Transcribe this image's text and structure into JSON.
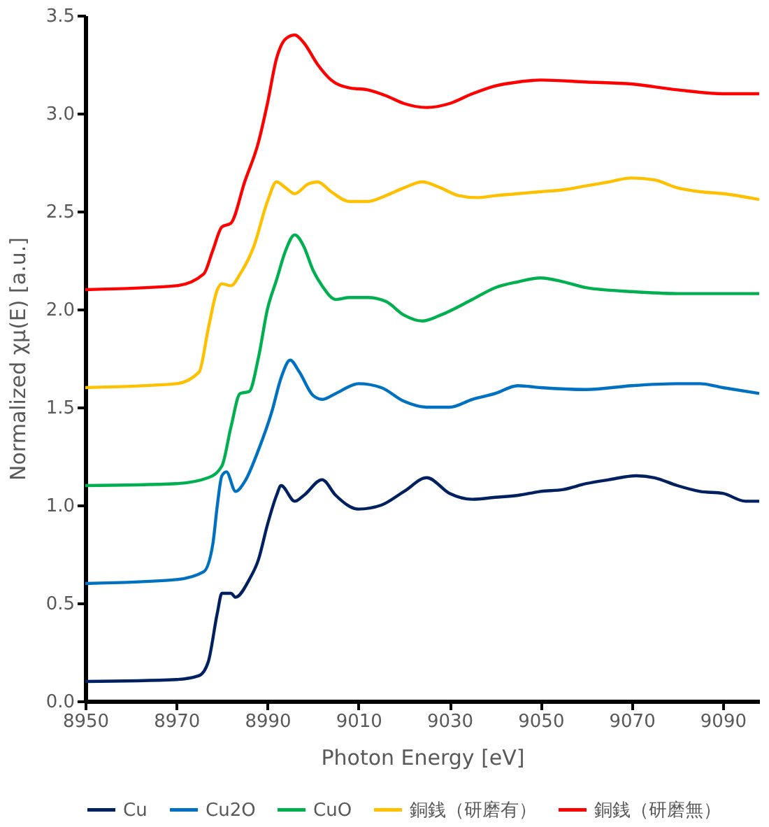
{
  "chart_data": {
    "type": "line",
    "xlabel": "Photon Energy [eV]",
    "ylabel": "Normalized χμ(E) [a.u.]",
    "xlim": [
      8950,
      9098
    ],
    "xticks": [
      8950,
      8970,
      8990,
      9010,
      9030,
      9050,
      9070,
      9090
    ],
    "ylim": [
      0,
      3.5
    ],
    "yticks": [
      {
        "value": 0,
        "label": "0.0"
      },
      0.5,
      {
        "value": 1,
        "label": "1.0"
      },
      1.5,
      {
        "value": 2,
        "label": "2.0"
      },
      2.5,
      {
        "value": 3,
        "label": "3.0"
      },
      3.5
    ],
    "grid": false,
    "legend": "bottom",
    "marker": "none",
    "line_style": "solid",
    "series": [
      {
        "name": "Cu",
        "color": "#002060",
        "x": [
          8950,
          8970,
          8975,
          8977,
          8979,
          8980,
          8982,
          8983,
          8986,
          8988,
          8990,
          8992,
          8993,
          8996,
          8998,
          9002,
          9005,
          9010,
          9015,
          9020,
          9025,
          9030,
          9035,
          9040,
          9045,
          9050,
          9055,
          9060,
          9065,
          9071,
          9075,
          9080,
          9085,
          9090,
          9095,
          9098
        ],
        "values": [
          0.1,
          0.11,
          0.13,
          0.2,
          0.45,
          0.55,
          0.55,
          0.53,
          0.62,
          0.72,
          0.9,
          1.05,
          1.1,
          1.02,
          1.05,
          1.13,
          1.05,
          0.98,
          1.0,
          1.07,
          1.14,
          1.06,
          1.03,
          1.04,
          1.05,
          1.07,
          1.08,
          1.11,
          1.13,
          1.15,
          1.14,
          1.1,
          1.07,
          1.06,
          1.02,
          1.02
        ]
      },
      {
        "name": "Cu2O",
        "color": "#0070c0",
        "x": [
          8950,
          8970,
          8976,
          8978,
          8979,
          8980,
          8981,
          8983,
          8985,
          8988,
          8991,
          8993,
          8995,
          8997,
          9000,
          9002,
          9005,
          9010,
          9015,
          9020,
          9025,
          9030,
          9035,
          9040,
          9045,
          9050,
          9060,
          9070,
          9080,
          9085,
          9090,
          9098
        ],
        "values": [
          0.6,
          0.62,
          0.66,
          0.8,
          1.0,
          1.15,
          1.17,
          1.07,
          1.12,
          1.28,
          1.48,
          1.65,
          1.74,
          1.68,
          1.56,
          1.54,
          1.57,
          1.62,
          1.6,
          1.53,
          1.5,
          1.5,
          1.54,
          1.57,
          1.61,
          1.6,
          1.59,
          1.61,
          1.62,
          1.62,
          1.6,
          1.57
        ]
      },
      {
        "name": "CuO",
        "color": "#00b050",
        "x": [
          8950,
          8970,
          8977,
          8980,
          8982,
          8984,
          8986,
          8988,
          8990,
          8992,
          8994,
          8996,
          8998,
          9000,
          9002,
          9005,
          9008,
          9012,
          9016,
          9020,
          9024,
          9028,
          9035,
          9040,
          9045,
          9050,
          9055,
          9060,
          9070,
          9080,
          9098
        ],
        "values": [
          1.1,
          1.11,
          1.14,
          1.2,
          1.4,
          1.57,
          1.58,
          1.75,
          2.0,
          2.15,
          2.3,
          2.38,
          2.32,
          2.2,
          2.12,
          2.05,
          2.06,
          2.06,
          2.04,
          1.97,
          1.94,
          1.97,
          2.05,
          2.11,
          2.14,
          2.16,
          2.14,
          2.11,
          2.09,
          2.08,
          2.08
        ]
      },
      {
        "name": "銅銭（研磨有）",
        "color": "#ffc000",
        "x": [
          8950,
          8970,
          8975,
          8977,
          8979,
          8980,
          8982,
          8984,
          8987,
          8990,
          8992,
          8994,
          8996,
          8999,
          9001,
          9004,
          9008,
          9012,
          9016,
          9020,
          9024,
          9028,
          9032,
          9036,
          9040,
          9045,
          9050,
          9055,
          9060,
          9065,
          9070,
          9075,
          9080,
          9085,
          9090,
          9098
        ],
        "values": [
          1.6,
          1.62,
          1.68,
          1.9,
          2.1,
          2.13,
          2.12,
          2.18,
          2.32,
          2.55,
          2.65,
          2.62,
          2.59,
          2.64,
          2.65,
          2.6,
          2.55,
          2.55,
          2.58,
          2.62,
          2.65,
          2.62,
          2.58,
          2.57,
          2.58,
          2.59,
          2.6,
          2.61,
          2.63,
          2.65,
          2.67,
          2.66,
          2.62,
          2.6,
          2.59,
          2.56
        ]
      },
      {
        "name": "銅銭（研磨無）",
        "color": "#ff0000",
        "x": [
          8950,
          8970,
          8976,
          8978,
          8980,
          8982,
          8985,
          8988,
          8990,
          8992,
          8994,
          8996,
          8998,
          9001,
          9004,
          9008,
          9012,
          9016,
          9020,
          9025,
          9030,
          9035,
          9040,
          9045,
          9050,
          9060,
          9070,
          9080,
          9090,
          9098
        ],
        "values": [
          2.1,
          2.12,
          2.18,
          2.3,
          2.42,
          2.44,
          2.65,
          2.85,
          3.05,
          3.28,
          3.38,
          3.4,
          3.36,
          3.25,
          3.17,
          3.13,
          3.12,
          3.09,
          3.05,
          3.03,
          3.05,
          3.1,
          3.14,
          3.16,
          3.17,
          3.16,
          3.15,
          3.12,
          3.1,
          3.1
        ]
      }
    ]
  }
}
